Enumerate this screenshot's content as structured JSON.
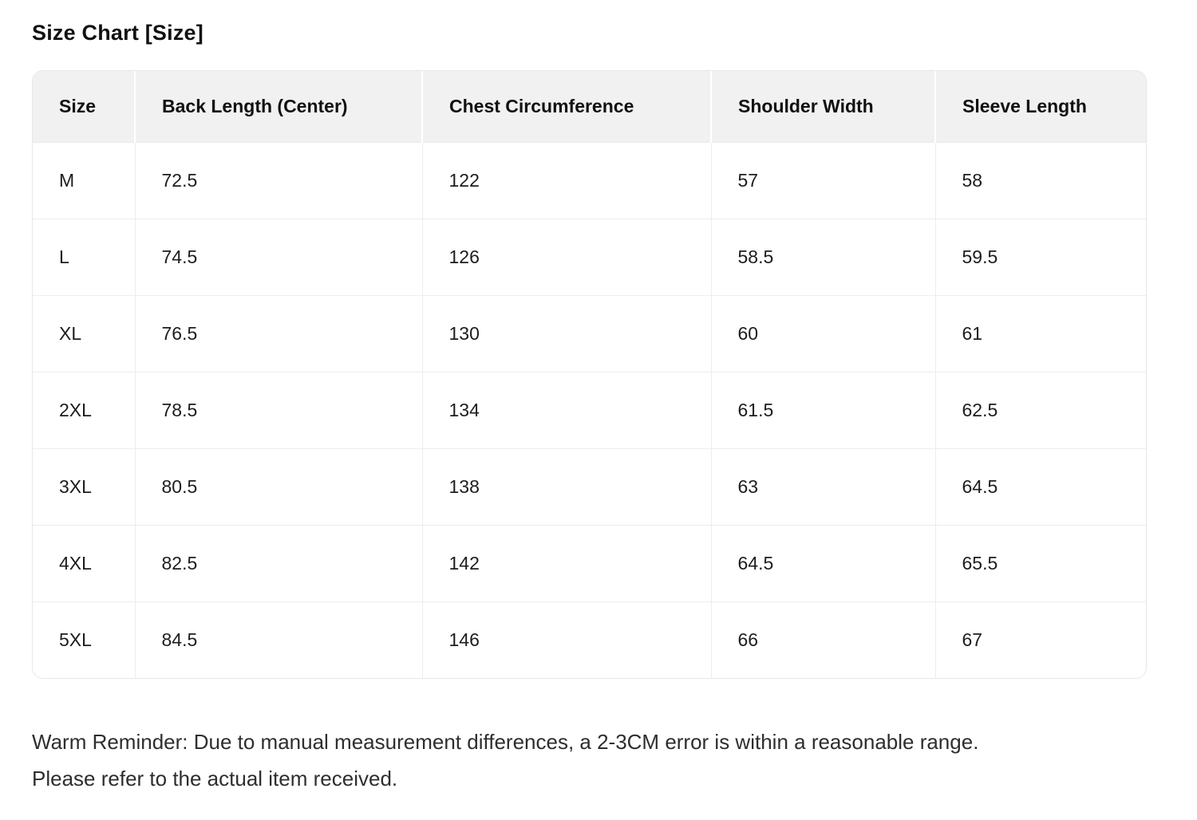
{
  "title": "Size Chart [Size]",
  "table": {
    "headers": [
      "Size",
      "Back Length (Center)",
      "Chest Circumference",
      "Shoulder Width",
      "Sleeve Length"
    ],
    "rows": [
      [
        "M",
        "72.5",
        "122",
        "57",
        "58"
      ],
      [
        "L",
        "74.5",
        "126",
        "58.5",
        "59.5"
      ],
      [
        "XL",
        "76.5",
        "130",
        "60",
        "61"
      ],
      [
        "2XL",
        "78.5",
        "134",
        "61.5",
        "62.5"
      ],
      [
        "3XL",
        "80.5",
        "138",
        "63",
        "64.5"
      ],
      [
        "4XL",
        "82.5",
        "142",
        "64.5",
        "65.5"
      ],
      [
        "5XL",
        "84.5",
        "146",
        "66",
        "67"
      ]
    ]
  },
  "reminder": {
    "line1": "Warm Reminder: Due to manual measurement differences, a 2-3CM error is within a reasonable range.",
    "line2": "Please refer to the actual item received."
  },
  "colors": {
    "header_background": "#f1f1f2",
    "grid_border": "#ededed",
    "outer_border": "#e7e7e7",
    "title_text": "#111111",
    "cell_text": "#1d1d1f",
    "reminder_text": "#2e2e2e",
    "page_background": "#ffffff"
  }
}
